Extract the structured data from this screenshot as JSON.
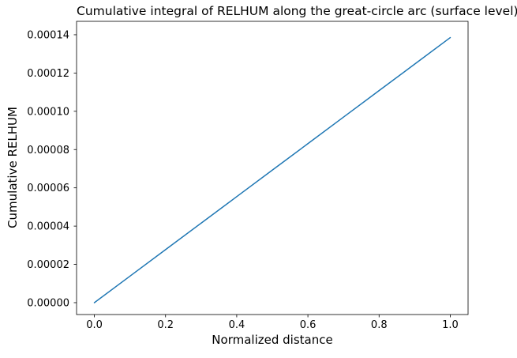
{
  "chart_data": {
    "type": "line",
    "title": "Cumulative integral of RELHUM along the great-circle arc (surface level)",
    "xlabel": "Normalized distance",
    "ylabel": "Cumulative RELHUM",
    "x_ticks": [
      0.0,
      0.2,
      0.4,
      0.6,
      0.8,
      1.0
    ],
    "x_tick_labels": [
      "0.0",
      "0.2",
      "0.4",
      "0.6",
      "0.8",
      "1.0"
    ],
    "y_ticks": [
      0.0,
      2e-05,
      4e-05,
      6e-05,
      8e-05,
      0.0001,
      0.00012,
      0.00014
    ],
    "y_tick_labels": [
      "0.00000",
      "0.00002",
      "0.00004",
      "0.00006",
      "0.00008",
      "0.00010",
      "0.00012",
      "0.00014"
    ],
    "xlim": [
      -0.05,
      1.05
    ],
    "ylim": [
      -6.2e-06,
      0.000147
    ],
    "grid": false,
    "legend": null,
    "background_color": "#ffffff",
    "spine_color": "#000000",
    "series": [
      {
        "name": "Cumulative RELHUM",
        "color": "#1f77b4",
        "line_width": 1.5,
        "x": [
          0.0,
          0.1,
          0.2,
          0.3,
          0.4,
          0.5,
          0.6,
          0.7,
          0.8,
          0.9,
          1.0
        ],
        "y": [
          0.0,
          1.385e-05,
          2.77e-05,
          4.155e-05,
          5.54e-05,
          6.925e-05,
          8.31e-05,
          9.695e-05,
          0.0001108,
          0.00012465,
          0.0001385
        ]
      }
    ]
  }
}
